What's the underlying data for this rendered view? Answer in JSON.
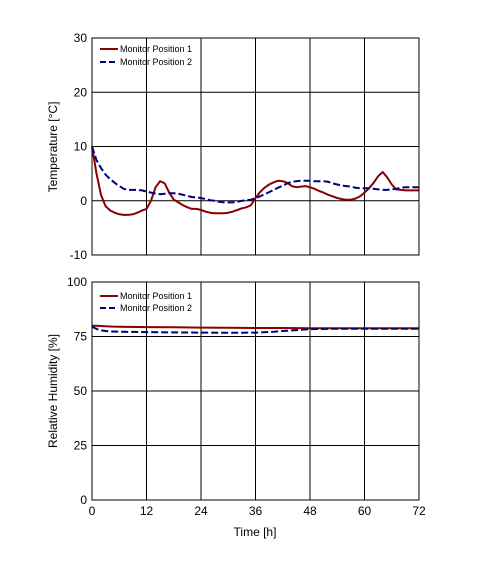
{
  "colors": {
    "series1": "#8b0000",
    "series2": "#00007a",
    "grid": "#000000"
  },
  "shared": {
    "xlabel": "Time [h]",
    "xlim": [
      0,
      72
    ],
    "xticks": [
      "0",
      "12",
      "24",
      "36",
      "48",
      "60",
      "72"
    ]
  },
  "chart_data": [
    {
      "type": "line",
      "title": "",
      "ylabel": "Temperature [°C]",
      "xlabel": "",
      "ylim": [
        -10,
        30
      ],
      "yticks": [
        "30",
        "20",
        "10",
        "0",
        "-10"
      ],
      "grid": true,
      "legend_position": "top-left",
      "series": [
        {
          "name": "Monitor Position 1",
          "style": "solid",
          "x": [
            0,
            1,
            2,
            3,
            4,
            5,
            6,
            7,
            8,
            9,
            10,
            11,
            12,
            13,
            14,
            15,
            16,
            17,
            18,
            19,
            20,
            21,
            22,
            23,
            24,
            25,
            26,
            27,
            28,
            29,
            30,
            31,
            32,
            33,
            34,
            35,
            36,
            37,
            38,
            39,
            40,
            41,
            42,
            43,
            44,
            45,
            46,
            47,
            48,
            49,
            50,
            51,
            52,
            53,
            54,
            55,
            56,
            57,
            58,
            59,
            60,
            61,
            62,
            63,
            64,
            65,
            66,
            67,
            68,
            69,
            70,
            71,
            72
          ],
          "values": [
            10,
            5,
            1,
            -1,
            -1.8,
            -2.2,
            -2.5,
            -2.6,
            -2.6,
            -2.5,
            -2.2,
            -1.8,
            -1.5,
            0,
            2.5,
            3.6,
            3.2,
            1.5,
            0.2,
            -0.3,
            -0.8,
            -1.2,
            -1.5,
            -1.5,
            -1.7,
            -2,
            -2.2,
            -2.3,
            -2.3,
            -2.3,
            -2.2,
            -2,
            -1.7,
            -1.4,
            -1.2,
            -0.8,
            0.5,
            1.6,
            2.4,
            3,
            3.4,
            3.7,
            3.6,
            3.3,
            2.7,
            2.5,
            2.6,
            2.7,
            2.5,
            2.2,
            1.8,
            1.5,
            1.1,
            0.8,
            0.5,
            0.3,
            0.2,
            0.2,
            0.4,
            0.8,
            1.5,
            2.3,
            3.3,
            4.5,
            5.3,
            4.3,
            3,
            2.1,
            2,
            1.9,
            1.9,
            1.9,
            1.9
          ]
        },
        {
          "name": "Monitor Position 2",
          "style": "dashed",
          "x": [
            0,
            1,
            2,
            3,
            4,
            5,
            6,
            7,
            8,
            9,
            10,
            11,
            12,
            13,
            14,
            15,
            16,
            17,
            18,
            19,
            20,
            21,
            22,
            23,
            24,
            25,
            26,
            27,
            28,
            29,
            30,
            31,
            32,
            33,
            34,
            35,
            36,
            37,
            38,
            39,
            40,
            41,
            42,
            43,
            44,
            45,
            46,
            47,
            48,
            49,
            50,
            51,
            52,
            53,
            54,
            55,
            56,
            57,
            58,
            59,
            60,
            61,
            62,
            63,
            64,
            65,
            66,
            67,
            68,
            69,
            70,
            71,
            72
          ],
          "values": [
            10,
            7.5,
            6,
            4.8,
            4,
            3.3,
            2.7,
            2.2,
            2,
            2,
            2,
            1.9,
            1.7,
            1.5,
            1.3,
            1.2,
            1.3,
            1.4,
            1.4,
            1.3,
            1.1,
            0.9,
            0.7,
            0.6,
            0.5,
            0.3,
            0.1,
            0,
            -0.2,
            -0.3,
            -0.3,
            -0.3,
            -0.2,
            0,
            0.1,
            0.2,
            0.5,
            0.8,
            1.2,
            1.6,
            2,
            2.4,
            2.8,
            3.2,
            3.5,
            3.6,
            3.7,
            3.7,
            3.7,
            3.6,
            3.6,
            3.6,
            3.5,
            3.2,
            3,
            2.8,
            2.7,
            2.6,
            2.4,
            2.3,
            2.3,
            2.3,
            2.2,
            2.1,
            2,
            2,
            2.1,
            2.2,
            2.4,
            2.5,
            2.5,
            2.5,
            2.5
          ]
        }
      ]
    },
    {
      "type": "line",
      "title": "",
      "ylabel": "Relative Humidity [%]",
      "xlabel": "Time [h]",
      "ylim": [
        0,
        100
      ],
      "yticks": [
        "100",
        "75",
        "50",
        "25",
        "0"
      ],
      "grid": true,
      "legend_position": "top-left",
      "series": [
        {
          "name": "Monitor Position 1",
          "style": "solid",
          "x": [
            0,
            2,
            4,
            6,
            8,
            12,
            18,
            24,
            30,
            36,
            42,
            48,
            54,
            60,
            66,
            72
          ],
          "values": [
            80,
            79.8,
            79.6,
            79.5,
            79.4,
            79.3,
            79.2,
            79.1,
            79,
            78.9,
            78.9,
            78.8,
            78.8,
            78.8,
            78.8,
            78.8
          ]
        },
        {
          "name": "Monitor Position 2",
          "style": "dashed",
          "x": [
            0,
            1,
            2,
            3,
            4,
            6,
            8,
            12,
            18,
            24,
            30,
            36,
            40,
            44,
            48,
            54,
            60,
            66,
            72
          ],
          "values": [
            79.5,
            78.5,
            77.8,
            77.5,
            77.3,
            77.2,
            77.1,
            77,
            76.9,
            76.8,
            76.7,
            76.8,
            77.2,
            77.8,
            78.4,
            78.6,
            78.6,
            78.6,
            78.6
          ]
        }
      ]
    }
  ]
}
